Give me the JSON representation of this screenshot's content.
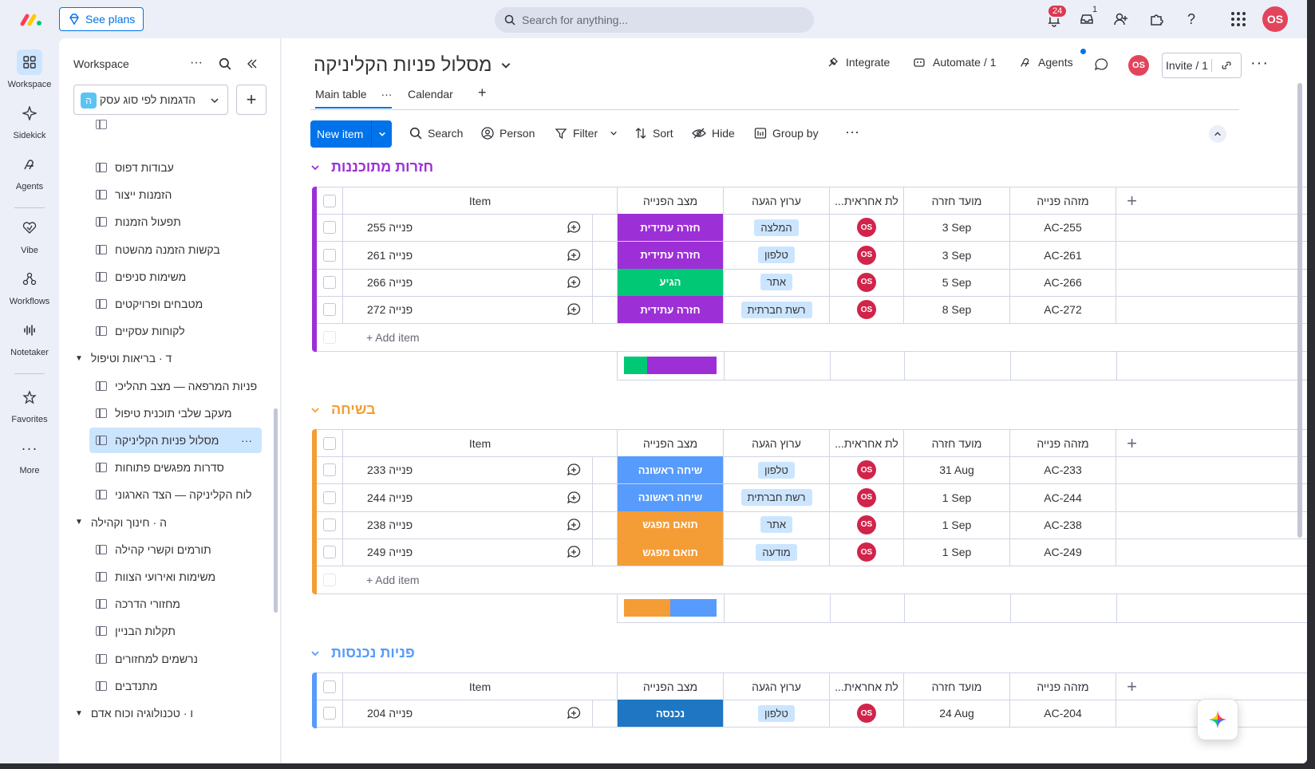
{
  "topbar": {
    "see_plans": "See plans",
    "search_placeholder": "Search for anything...",
    "notifications_count": "24",
    "inbox_count": "1",
    "avatar": "OS"
  },
  "rail": [
    {
      "label": "Workspace",
      "icon": "workspace-icon"
    },
    {
      "label": "Sidekick",
      "icon": "sidekick-icon"
    },
    {
      "label": "Agents",
      "icon": "agents-icon"
    },
    {
      "label": "Vibe",
      "icon": "vibe-icon"
    },
    {
      "label": "Workflows",
      "icon": "workflows-icon"
    },
    {
      "label": "Notetaker",
      "icon": "notetaker-icon"
    },
    {
      "label": "Favorites",
      "icon": "star-icon"
    },
    {
      "label": "More",
      "icon": "more-icon"
    }
  ],
  "workspace": {
    "title": "Workspace",
    "selected": "הדגמות לפי סוג עסק",
    "selected_badge": "ה",
    "tree": [
      {
        "type": "board",
        "label": "עבודות דפוס"
      },
      {
        "type": "board",
        "label": "הזמנות ייצור"
      },
      {
        "type": "board",
        "label": "תפעול הזמנות"
      },
      {
        "type": "board",
        "label": "בקשות הזמנה מהשטח"
      },
      {
        "type": "board",
        "label": "משימות סניפים"
      },
      {
        "type": "board",
        "label": "מטבחים ופרויקטים"
      },
      {
        "type": "board",
        "label": "לקוחות עסקיים"
      },
      {
        "type": "folder",
        "label": "ד · בריאות וטיפול"
      },
      {
        "type": "board",
        "label": "פניות המרפאה — מצב תהליכי"
      },
      {
        "type": "board",
        "label": "מעקב שלבי תוכנית טיפול"
      },
      {
        "type": "board",
        "label": "מסלול פניות הקליניקה",
        "active": true
      },
      {
        "type": "board",
        "label": "סדרות מפגשים פתוחות"
      },
      {
        "type": "board",
        "label": "לוח הקליניקה — הצד הארגוני"
      },
      {
        "type": "folder",
        "label": "ה · חינוך וקהילה"
      },
      {
        "type": "board",
        "label": "תורמים וקשרי קהילה"
      },
      {
        "type": "board",
        "label": "משימות ואירועי הצוות"
      },
      {
        "type": "board",
        "label": "מחזורי הדרכה"
      },
      {
        "type": "board",
        "label": "תקלות הבניין"
      },
      {
        "type": "board",
        "label": "נרשמים למחזורים"
      },
      {
        "type": "board",
        "label": "מתנדבים"
      },
      {
        "type": "folder",
        "label": "ו · טכנולוגיה וכוח אדם"
      }
    ]
  },
  "board": {
    "title": "מסלול פניות הקליניקה",
    "integrate": "Integrate",
    "automate": "Automate / 1",
    "agents": "Agents",
    "invite": "Invite / 1",
    "avatar": "OS",
    "tabs": [
      "Main table",
      "Calendar"
    ],
    "toolbar": {
      "new_item": "New item",
      "search": "Search",
      "person": "Person",
      "filter": "Filter",
      "sort": "Sort",
      "hide": "Hide",
      "group_by": "Group by"
    }
  },
  "columns": {
    "item": "Item",
    "status": "מצב הפנייה",
    "channel": "ערוץ הגעה",
    "owner": "...לת אחראית",
    "due": "מועד חזרה",
    "id": "מזהה פנייה"
  },
  "add_item": "+ Add item",
  "colors": {
    "purple": "#9d2fd6",
    "green": "#00c875",
    "blue_light": "#579bfc",
    "orange": "#f49d37",
    "blue_dark": "#1f76c2",
    "accent": "#0073ea"
  },
  "groups": [
    {
      "title": "חזרות מתוכננות",
      "color": "#9d2fd6",
      "rows": [
        {
          "item": "פנייה 255",
          "status": "חזרה עתידית",
          "status_color": "#9d2fd6",
          "channel": "המלצה",
          "owner": "OS",
          "due": "3 Sep",
          "id": "AC-255"
        },
        {
          "item": "פנייה 261",
          "status": "חזרה עתידית",
          "status_color": "#9d2fd6",
          "channel": "טלפון",
          "owner": "OS",
          "due": "3 Sep",
          "id": "AC-261"
        },
        {
          "item": "פנייה 266",
          "status": "הגיע",
          "status_color": "#00c875",
          "channel": "אתר",
          "owner": "OS",
          "due": "5 Sep",
          "id": "AC-266"
        },
        {
          "item": "פנייה 272",
          "status": "חזרה עתידית",
          "status_color": "#9d2fd6",
          "channel": "רשת חברתית",
          "owner": "OS",
          "due": "8 Sep",
          "id": "AC-272"
        }
      ]
    },
    {
      "title": "בשיחה",
      "color": "#f49d37",
      "rows": [
        {
          "item": "פנייה 233",
          "status": "שיחה ראשונה",
          "status_color": "#579bfc",
          "channel": "טלפון",
          "owner": "OS",
          "due": "31 Aug",
          "id": "AC-233"
        },
        {
          "item": "פנייה 244",
          "status": "שיחה ראשונה",
          "status_color": "#579bfc",
          "channel": "רשת חברתית",
          "owner": "OS",
          "due": "1 Sep",
          "id": "AC-244"
        },
        {
          "item": "פנייה 238",
          "status": "תואם מפגש",
          "status_color": "#f49d37",
          "channel": "אתר",
          "owner": "OS",
          "due": "1 Sep",
          "id": "AC-238"
        },
        {
          "item": "פנייה 249",
          "status": "תואם מפגש",
          "status_color": "#f49d37",
          "channel": "מודעה",
          "owner": "OS",
          "due": "1 Sep",
          "id": "AC-249"
        }
      ]
    },
    {
      "title": "פניות נכנסות",
      "color": "#579bfc",
      "rows": [
        {
          "item": "פנייה 204",
          "status": "נכנסה",
          "status_color": "#1f76c2",
          "channel": "טלפון",
          "owner": "OS",
          "due": "24 Aug",
          "id": "AC-204"
        }
      ]
    }
  ]
}
